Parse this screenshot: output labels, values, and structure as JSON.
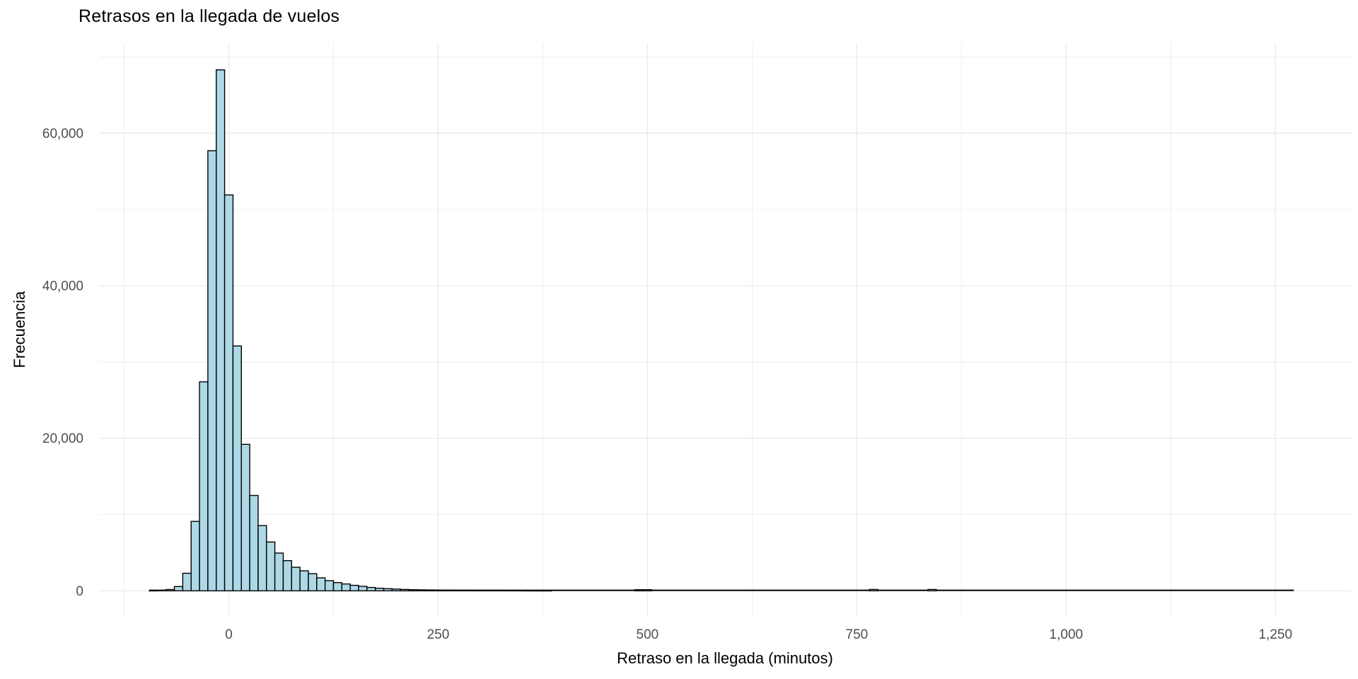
{
  "chart_data": {
    "type": "bar",
    "subtype": "histogram",
    "title": "Retrasos en la llegada de vuelos",
    "xlabel": "Retraso en la llegada (minutos)",
    "ylabel": "Frecuencia",
    "grid": true,
    "legend": false,
    "bin_width": 10,
    "bins": [
      [
        -95,
        15
      ],
      [
        -85,
        30
      ],
      [
        -75,
        170
      ],
      [
        -65,
        560
      ],
      [
        -55,
        2300
      ],
      [
        -45,
        9100
      ],
      [
        -35,
        27400
      ],
      [
        -25,
        57700
      ],
      [
        -15,
        68300
      ],
      [
        -5,
        51900
      ],
      [
        5,
        32100
      ],
      [
        15,
        19200
      ],
      [
        25,
        12500
      ],
      [
        35,
        8550
      ],
      [
        45,
        6400
      ],
      [
        55,
        4950
      ],
      [
        65,
        3960
      ],
      [
        75,
        3090
      ],
      [
        85,
        2620
      ],
      [
        95,
        2250
      ],
      [
        105,
        1700
      ],
      [
        115,
        1330
      ],
      [
        125,
        1080
      ],
      [
        135,
        900
      ],
      [
        145,
        720
      ],
      [
        155,
        590
      ],
      [
        165,
        440
      ],
      [
        175,
        340
      ],
      [
        185,
        280
      ],
      [
        195,
        230
      ],
      [
        205,
        180
      ],
      [
        215,
        150
      ],
      [
        225,
        130
      ],
      [
        235,
        115
      ],
      [
        245,
        100
      ],
      [
        255,
        90
      ],
      [
        265,
        80
      ],
      [
        275,
        70
      ],
      [
        285,
        60
      ],
      [
        295,
        50
      ],
      [
        305,
        40
      ],
      [
        315,
        35
      ],
      [
        325,
        30
      ],
      [
        335,
        25
      ],
      [
        345,
        20
      ],
      [
        355,
        15
      ],
      [
        365,
        12
      ],
      [
        375,
        10
      ],
      [
        485,
        150
      ],
      [
        495,
        150
      ],
      [
        765,
        180
      ],
      [
        835,
        180
      ]
    ],
    "tail_line_range": [
      -95,
      1272
    ],
    "xlim": [
      -155,
      1341
    ],
    "ylim": [
      -3400,
      71800
    ],
    "x_ticks": [
      {
        "value": 0,
        "label": "0"
      },
      {
        "value": 250,
        "label": "250"
      },
      {
        "value": 500,
        "label": "500"
      },
      {
        "value": 750,
        "label": "750"
      },
      {
        "value": 1000,
        "label": "1,000"
      },
      {
        "value": 1250,
        "label": "1,250"
      }
    ],
    "y_ticks": [
      {
        "value": 0,
        "label": "0"
      },
      {
        "value": 20000,
        "label": "20,000"
      },
      {
        "value": 40000,
        "label": "40,000"
      },
      {
        "value": 60000,
        "label": "60,000"
      }
    ],
    "x_minor_gridlines": [
      -125,
      125,
      375,
      625,
      875,
      1125
    ],
    "y_minor_gridlines": [
      10000,
      30000,
      50000,
      70000
    ],
    "colors": {
      "bar_fill": "#ADD8E6",
      "bar_stroke": "#000000",
      "gridline": "#EBEBEB",
      "tick_label": "#4D4D4D",
      "title_text": "#000000",
      "background": "#FFFFFF"
    }
  }
}
